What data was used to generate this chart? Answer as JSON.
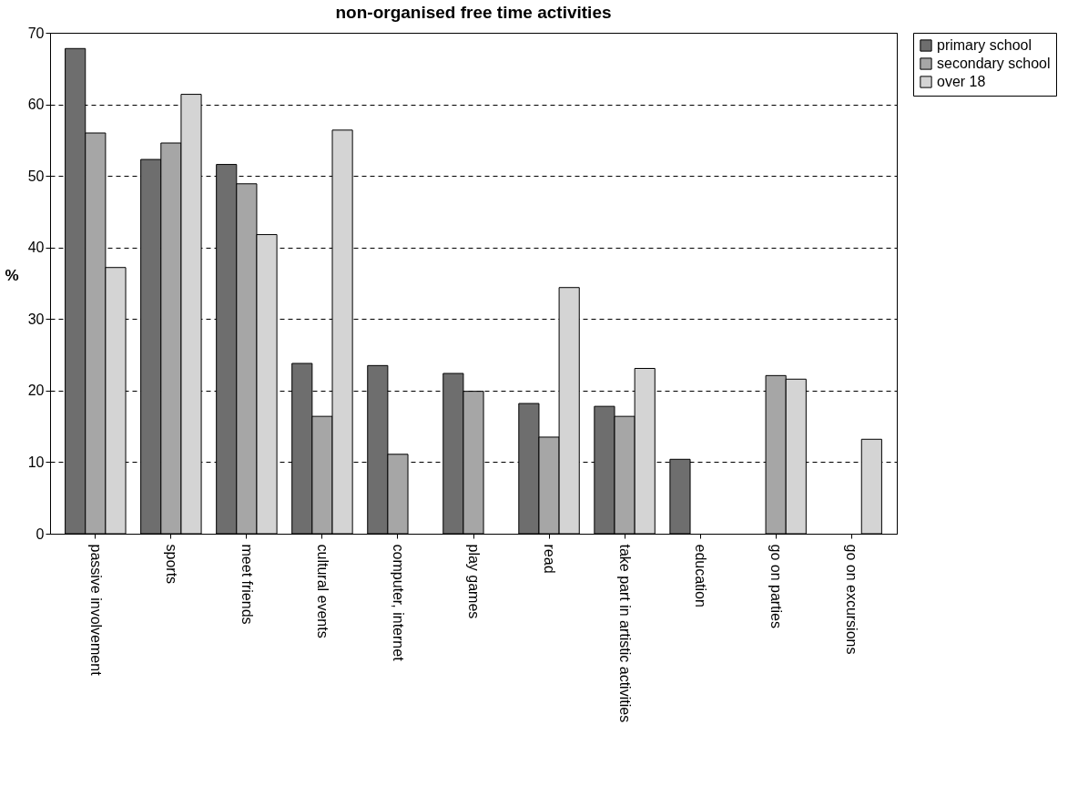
{
  "chart_data": {
    "type": "bar",
    "title": "non-organised free time activities",
    "ylabel": "%",
    "categories": [
      "passive involvement",
      "sports",
      "meet friends",
      "cultural events",
      "computer, internet",
      "play games",
      "read",
      "take part in artistic activities",
      "education",
      "go on parties",
      "go on excursions"
    ],
    "series": [
      {
        "name": "primary school",
        "color": "#6e6e6e",
        "values": [
          67.8,
          52.3,
          51.6,
          23.8,
          23.5,
          22.4,
          18.2,
          17.8,
          10.4,
          null,
          null
        ]
      },
      {
        "name": "secondary school",
        "color": "#a6a6a6",
        "values": [
          56.0,
          54.6,
          48.9,
          16.4,
          11.1,
          19.9,
          13.5,
          16.4,
          null,
          22.1,
          null
        ]
      },
      {
        "name": "over 18",
        "color": "#d4d4d4",
        "values": [
          37.2,
          61.4,
          41.8,
          56.4,
          null,
          null,
          34.4,
          23.1,
          null,
          21.6,
          13.2
        ]
      }
    ],
    "ylim": [
      0,
      70
    ],
    "yticks": [
      0,
      10,
      20,
      30,
      40,
      50,
      60,
      70
    ],
    "grid": "y",
    "legend": "top right"
  }
}
